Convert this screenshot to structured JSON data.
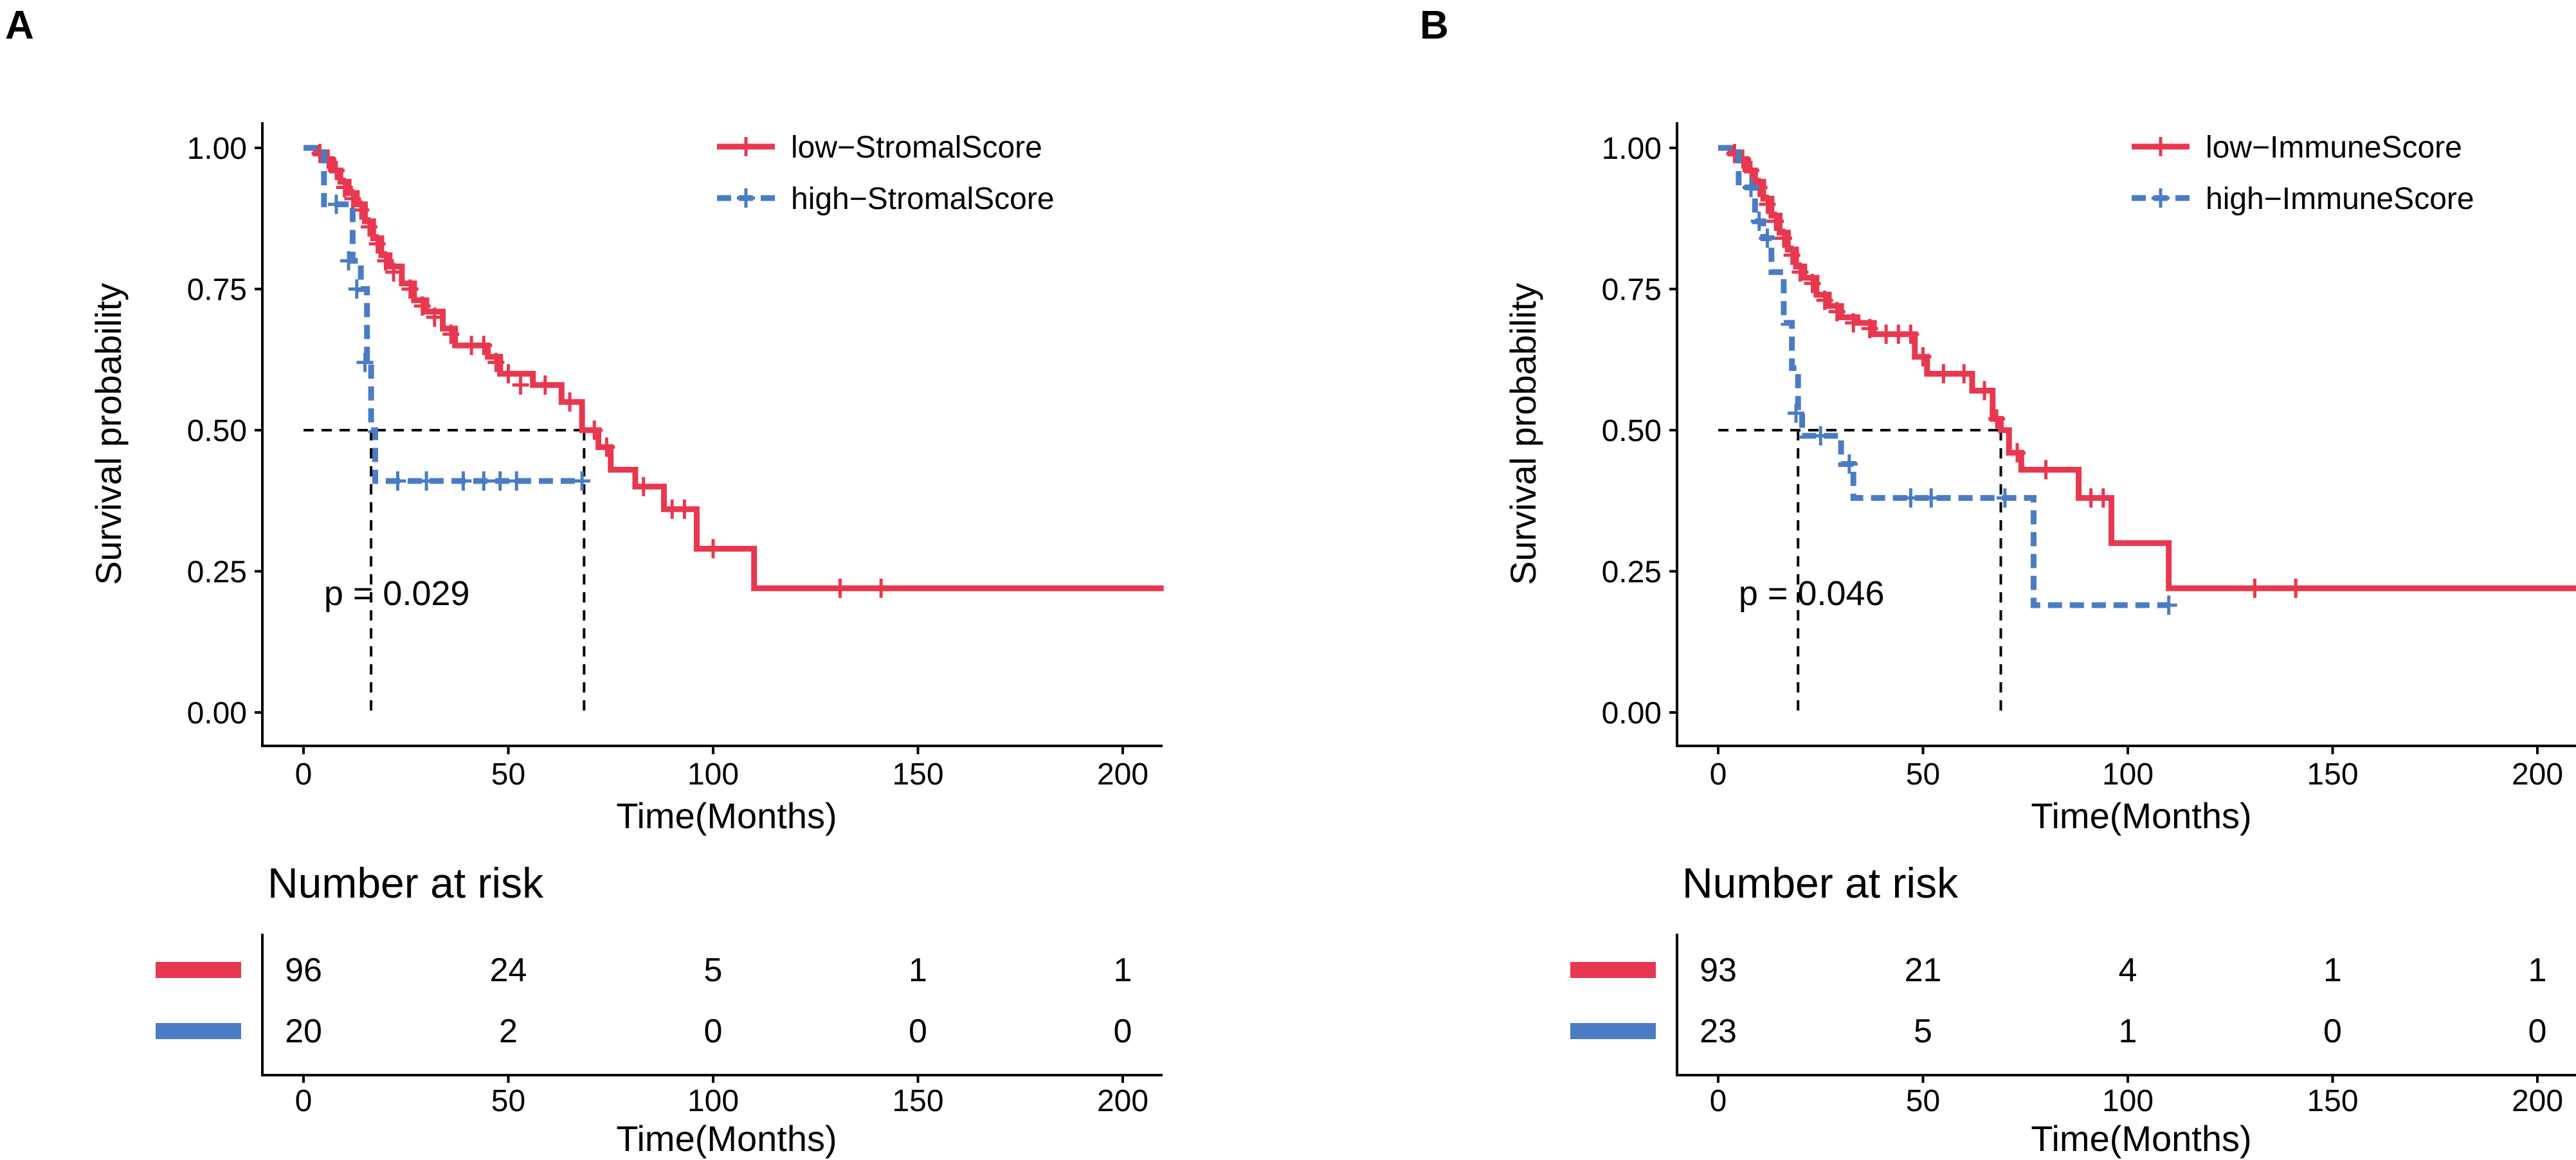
{
  "chart_data": [
    {
      "panel_label": "A",
      "type": "line",
      "subtype": "kaplan-meier",
      "xlabel": "Time(Months)",
      "ylabel": "Survival probability",
      "xlim": [
        0,
        210
      ],
      "ylim": [
        0,
        1
      ],
      "xticks": [
        "0",
        "50",
        "100",
        "150",
        "200"
      ],
      "yticks": [
        "0.00",
        "0.25",
        "0.50",
        "0.75",
        "1.00"
      ],
      "pvalue_text": "p = 0.029",
      "legend_position": "top-right",
      "median_survival": [
        16.5,
        68.5
      ],
      "series": [
        {
          "name": "low−StromalScore",
          "color": "#E8384F",
          "style": "solid",
          "steps": [
            [
              0,
              1.0
            ],
            [
              3,
              0.99
            ],
            [
              5,
              0.98
            ],
            [
              7,
              0.96
            ],
            [
              9,
              0.94
            ],
            [
              11,
              0.92
            ],
            [
              13,
              0.9
            ],
            [
              15,
              0.87
            ],
            [
              17,
              0.84
            ],
            [
              19,
              0.81
            ],
            [
              21,
              0.79
            ],
            [
              24,
              0.76
            ],
            [
              27,
              0.73
            ],
            [
              30,
              0.71
            ],
            [
              34,
              0.68
            ],
            [
              37,
              0.65
            ],
            [
              45,
              0.63
            ],
            [
              48,
              0.6
            ],
            [
              56,
              0.58
            ],
            [
              63,
              0.55
            ],
            [
              68,
              0.5
            ],
            [
              72,
              0.47
            ],
            [
              75,
              0.43
            ],
            [
              81,
              0.4
            ],
            [
              88,
              0.36
            ],
            [
              96,
              0.29
            ],
            [
              110,
              0.22
            ],
            [
              210,
              0.22
            ]
          ],
          "censors": [
            [
              4,
              0.99
            ],
            [
              6,
              0.98
            ],
            [
              8,
              0.96
            ],
            [
              10,
              0.93
            ],
            [
              12,
              0.91
            ],
            [
              14,
              0.89
            ],
            [
              16,
              0.86
            ],
            [
              18,
              0.83
            ],
            [
              20,
              0.8
            ],
            [
              22,
              0.78
            ],
            [
              26,
              0.75
            ],
            [
              29,
              0.72
            ],
            [
              32,
              0.7
            ],
            [
              36,
              0.67
            ],
            [
              41,
              0.65
            ],
            [
              44,
              0.65
            ],
            [
              47,
              0.62
            ],
            [
              50,
              0.6
            ],
            [
              53,
              0.58
            ],
            [
              59,
              0.58
            ],
            [
              65,
              0.55
            ],
            [
              71,
              0.5
            ],
            [
              74,
              0.47
            ],
            [
              83,
              0.4
            ],
            [
              90,
              0.36
            ],
            [
              93,
              0.36
            ],
            [
              100,
              0.29
            ],
            [
              131,
              0.22
            ],
            [
              141,
              0.22
            ]
          ]
        },
        {
          "name": "high−StromalScore",
          "color": "#4A7CC4",
          "style": "dashed",
          "steps": [
            [
              0,
              1.0
            ],
            [
              5,
              0.9
            ],
            [
              12,
              0.8
            ],
            [
              14,
              0.75
            ],
            [
              15.5,
              0.62
            ],
            [
              16.5,
              0.5
            ],
            [
              17.5,
              0.41
            ],
            [
              68,
              0.41
            ]
          ],
          "censors": [
            [
              8,
              0.9
            ],
            [
              11,
              0.8
            ],
            [
              13,
              0.75
            ],
            [
              15,
              0.62
            ],
            [
              23,
              0.41
            ],
            [
              30,
              0.41
            ],
            [
              39,
              0.41
            ],
            [
              44,
              0.41
            ],
            [
              48,
              0.41
            ],
            [
              52,
              0.41
            ],
            [
              68,
              0.41
            ]
          ]
        }
      ],
      "risk_table": {
        "title": "Number at risk",
        "xlabel": "Time(Months)",
        "times": [
          "0",
          "50",
          "100",
          "150",
          "200"
        ],
        "rows": [
          {
            "color": "#E8384F",
            "values": [
              "96",
              "24",
              "5",
              "1",
              "1"
            ]
          },
          {
            "color": "#4A7CC4",
            "values": [
              "20",
              "2",
              "0",
              "0",
              "0"
            ]
          }
        ]
      }
    },
    {
      "panel_label": "B",
      "type": "line",
      "subtype": "kaplan-meier",
      "xlabel": "Time(Months)",
      "ylabel": "Survival probability",
      "xlim": [
        0,
        210
      ],
      "ylim": [
        0,
        1
      ],
      "xticks": [
        "0",
        "50",
        "100",
        "150",
        "200"
      ],
      "yticks": [
        "0.00",
        "0.25",
        "0.50",
        "0.75",
        "1.00"
      ],
      "pvalue_text": "p = 0.046",
      "legend_position": "top-right",
      "median_survival": [
        19.5,
        69
      ],
      "series": [
        {
          "name": "low−ImmuneScore",
          "color": "#E8384F",
          "style": "solid",
          "steps": [
            [
              0,
              1.0
            ],
            [
              3,
              0.99
            ],
            [
              5,
              0.98
            ],
            [
              7,
              0.96
            ],
            [
              9,
              0.94
            ],
            [
              11,
              0.91
            ],
            [
              13,
              0.88
            ],
            [
              15,
              0.85
            ],
            [
              17,
              0.82
            ],
            [
              19,
              0.79
            ],
            [
              21,
              0.77
            ],
            [
              24,
              0.74
            ],
            [
              27,
              0.72
            ],
            [
              30,
              0.7
            ],
            [
              34,
              0.69
            ],
            [
              38,
              0.67
            ],
            [
              48,
              0.63
            ],
            [
              51,
              0.6
            ],
            [
              62,
              0.57
            ],
            [
              67,
              0.52
            ],
            [
              69,
              0.5
            ],
            [
              71,
              0.46
            ],
            [
              74,
              0.43
            ],
            [
              88,
              0.38
            ],
            [
              96,
              0.3
            ],
            [
              110,
              0.22
            ],
            [
              210,
              0.22
            ]
          ],
          "censors": [
            [
              4,
              0.99
            ],
            [
              6,
              0.98
            ],
            [
              8,
              0.96
            ],
            [
              10,
              0.93
            ],
            [
              12,
              0.9
            ],
            [
              14,
              0.87
            ],
            [
              16,
              0.84
            ],
            [
              18,
              0.81
            ],
            [
              20,
              0.78
            ],
            [
              23,
              0.76
            ],
            [
              26,
              0.73
            ],
            [
              29,
              0.71
            ],
            [
              33,
              0.69
            ],
            [
              37,
              0.68
            ],
            [
              41,
              0.67
            ],
            [
              44,
              0.67
            ],
            [
              47,
              0.67
            ],
            [
              50,
              0.63
            ],
            [
              55,
              0.6
            ],
            [
              60,
              0.6
            ],
            [
              65,
              0.57
            ],
            [
              68,
              0.52
            ],
            [
              73,
              0.46
            ],
            [
              80,
              0.43
            ],
            [
              91,
              0.38
            ],
            [
              94,
              0.38
            ],
            [
              131,
              0.22
            ],
            [
              141,
              0.22
            ]
          ]
        },
        {
          "name": "high−ImmuneScore",
          "color": "#4A7CC4",
          "style": "dashed",
          "steps": [
            [
              0,
              1.0
            ],
            [
              5,
              0.93
            ],
            [
              9,
              0.87
            ],
            [
              11,
              0.84
            ],
            [
              13,
              0.78
            ],
            [
              16,
              0.69
            ],
            [
              18,
              0.61
            ],
            [
              19.5,
              0.53
            ],
            [
              20.5,
              0.49
            ],
            [
              30,
              0.44
            ],
            [
              33,
              0.38
            ],
            [
              73,
              0.38
            ],
            [
              77,
              0.19
            ],
            [
              110,
              0.19
            ]
          ],
          "censors": [
            [
              8,
              0.93
            ],
            [
              10,
              0.87
            ],
            [
              12,
              0.84
            ],
            [
              19,
              0.53
            ],
            [
              25,
              0.49
            ],
            [
              32,
              0.44
            ],
            [
              47,
              0.38
            ],
            [
              52,
              0.38
            ],
            [
              70,
              0.38
            ],
            [
              110,
              0.19
            ]
          ]
        }
      ],
      "risk_table": {
        "title": "Number at risk",
        "xlabel": "Time(Months)",
        "times": [
          "0",
          "50",
          "100",
          "150",
          "200"
        ],
        "rows": [
          {
            "color": "#E8384F",
            "values": [
              "93",
              "21",
              "4",
              "1",
              "1"
            ]
          },
          {
            "color": "#4A7CC4",
            "values": [
              "23",
              "5",
              "1",
              "0",
              "0"
            ]
          }
        ]
      }
    }
  ]
}
